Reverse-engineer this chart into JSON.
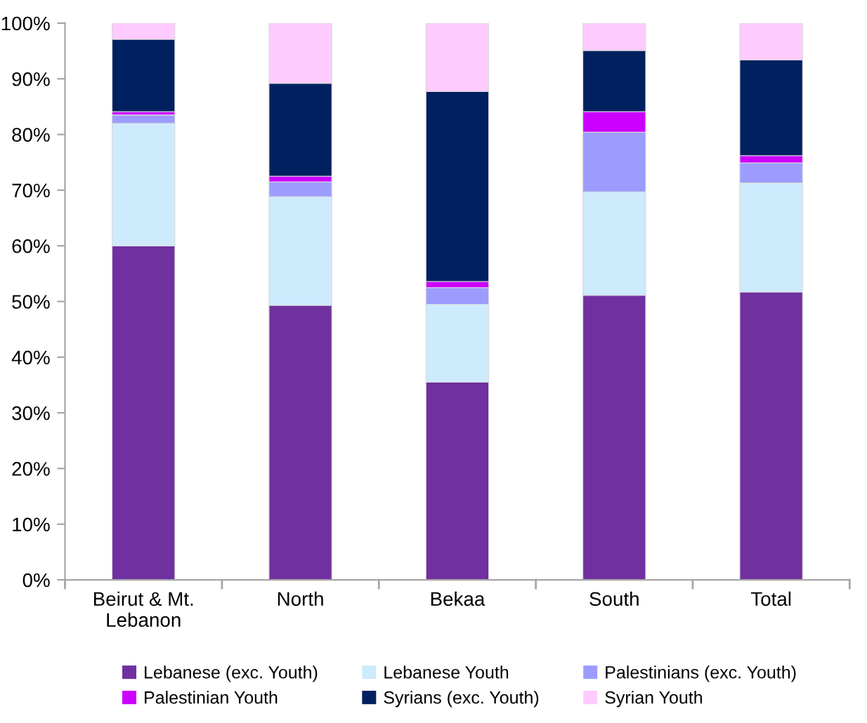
{
  "chart_data": {
    "type": "bar",
    "stacked": true,
    "categories": [
      "Beirut & Mt. Lebanon",
      "North",
      "Bekaa",
      "South",
      "Total"
    ],
    "series": [
      {
        "name": "Lebanese (exc. Youth)",
        "color": "#7030a0",
        "values": [
          60,
          49.3,
          35.5,
          51.1,
          51.7
        ]
      },
      {
        "name": "Lebanese Youth",
        "color": "#cdebfd",
        "values": [
          22,
          19.5,
          14,
          18.6,
          19.6
        ]
      },
      {
        "name": "Palestinians (exc. Youth)",
        "color": "#9c9cfe",
        "values": [
          1.5,
          2.7,
          3,
          10.7,
          3.6
        ]
      },
      {
        "name": "Palestinian Youth",
        "color": "#cc00ff",
        "values": [
          0.6,
          1,
          1.1,
          3.7,
          1.3
        ]
      },
      {
        "name": "Syrians (exc. Youth)",
        "color": "#002060",
        "values": [
          13,
          16.7,
          34.1,
          11,
          17.2
        ]
      },
      {
        "name": "Syrian Youth",
        "color": "#fecbfe",
        "values": [
          2.9,
          10.8,
          12.3,
          4.9,
          6.6
        ]
      }
    ],
    "ylim": [
      0,
      100
    ],
    "yticks": [
      {
        "value": 0,
        "label": "0%"
      },
      {
        "value": 10,
        "label": "10%"
      },
      {
        "value": 20,
        "label": "20%"
      },
      {
        "value": 30,
        "label": "30%"
      },
      {
        "value": 40,
        "label": "40%"
      },
      {
        "value": 50,
        "label": "50%"
      },
      {
        "value": 60,
        "label": "60%"
      },
      {
        "value": 70,
        "label": "70%"
      },
      {
        "value": 80,
        "label": "80%"
      },
      {
        "value": 90,
        "label": "90%"
      },
      {
        "value": 100,
        "label": "100%"
      }
    ],
    "grid": false,
    "legend": "bottom"
  }
}
